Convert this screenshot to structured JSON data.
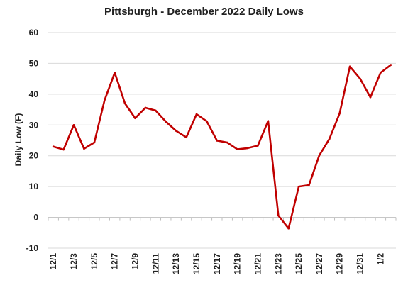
{
  "chart_data": {
    "type": "line",
    "title": "Pittsburgh - December 2022 Daily Lows",
    "xlabel": "",
    "ylabel": "Daily Low (F)",
    "ylim": [
      -10,
      60
    ],
    "yticks": [
      -10,
      0,
      10,
      20,
      30,
      40,
      50,
      60
    ],
    "grid": true,
    "legend": "none",
    "x": [
      "12/1",
      "12/2",
      "12/3",
      "12/4",
      "12/5",
      "12/6",
      "12/7",
      "12/8",
      "12/9",
      "12/10",
      "12/11",
      "12/12",
      "12/13",
      "12/14",
      "12/15",
      "12/16",
      "12/17",
      "12/18",
      "12/19",
      "12/20",
      "12/21",
      "12/22",
      "12/23",
      "12/24",
      "12/25",
      "12/26",
      "12/27",
      "12/28",
      "12/29",
      "12/30",
      "12/31",
      "1/1",
      "1/2",
      "1/3"
    ],
    "xtick_labels": [
      "12/1",
      "12/3",
      "12/5",
      "12/7",
      "12/9",
      "12/11",
      "12/13",
      "12/15",
      "12/17",
      "12/19",
      "12/21",
      "12/23",
      "12/25",
      "12/27",
      "12/29",
      "12/31",
      "1/2"
    ],
    "series": [
      {
        "values": [
          23,
          22,
          30,
          22.3,
          24.3,
          38,
          47,
          37,
          32.2,
          35.6,
          34.7,
          31.1,
          28.1,
          26,
          33.5,
          31.2,
          24.9,
          24.3,
          22.1,
          22.5,
          23.3,
          31.3,
          0.6,
          -3.6,
          10,
          10.5,
          20.1,
          25.5,
          33.8,
          49,
          45,
          39,
          47,
          49.5
        ],
        "color": "#c00000"
      }
    ]
  }
}
